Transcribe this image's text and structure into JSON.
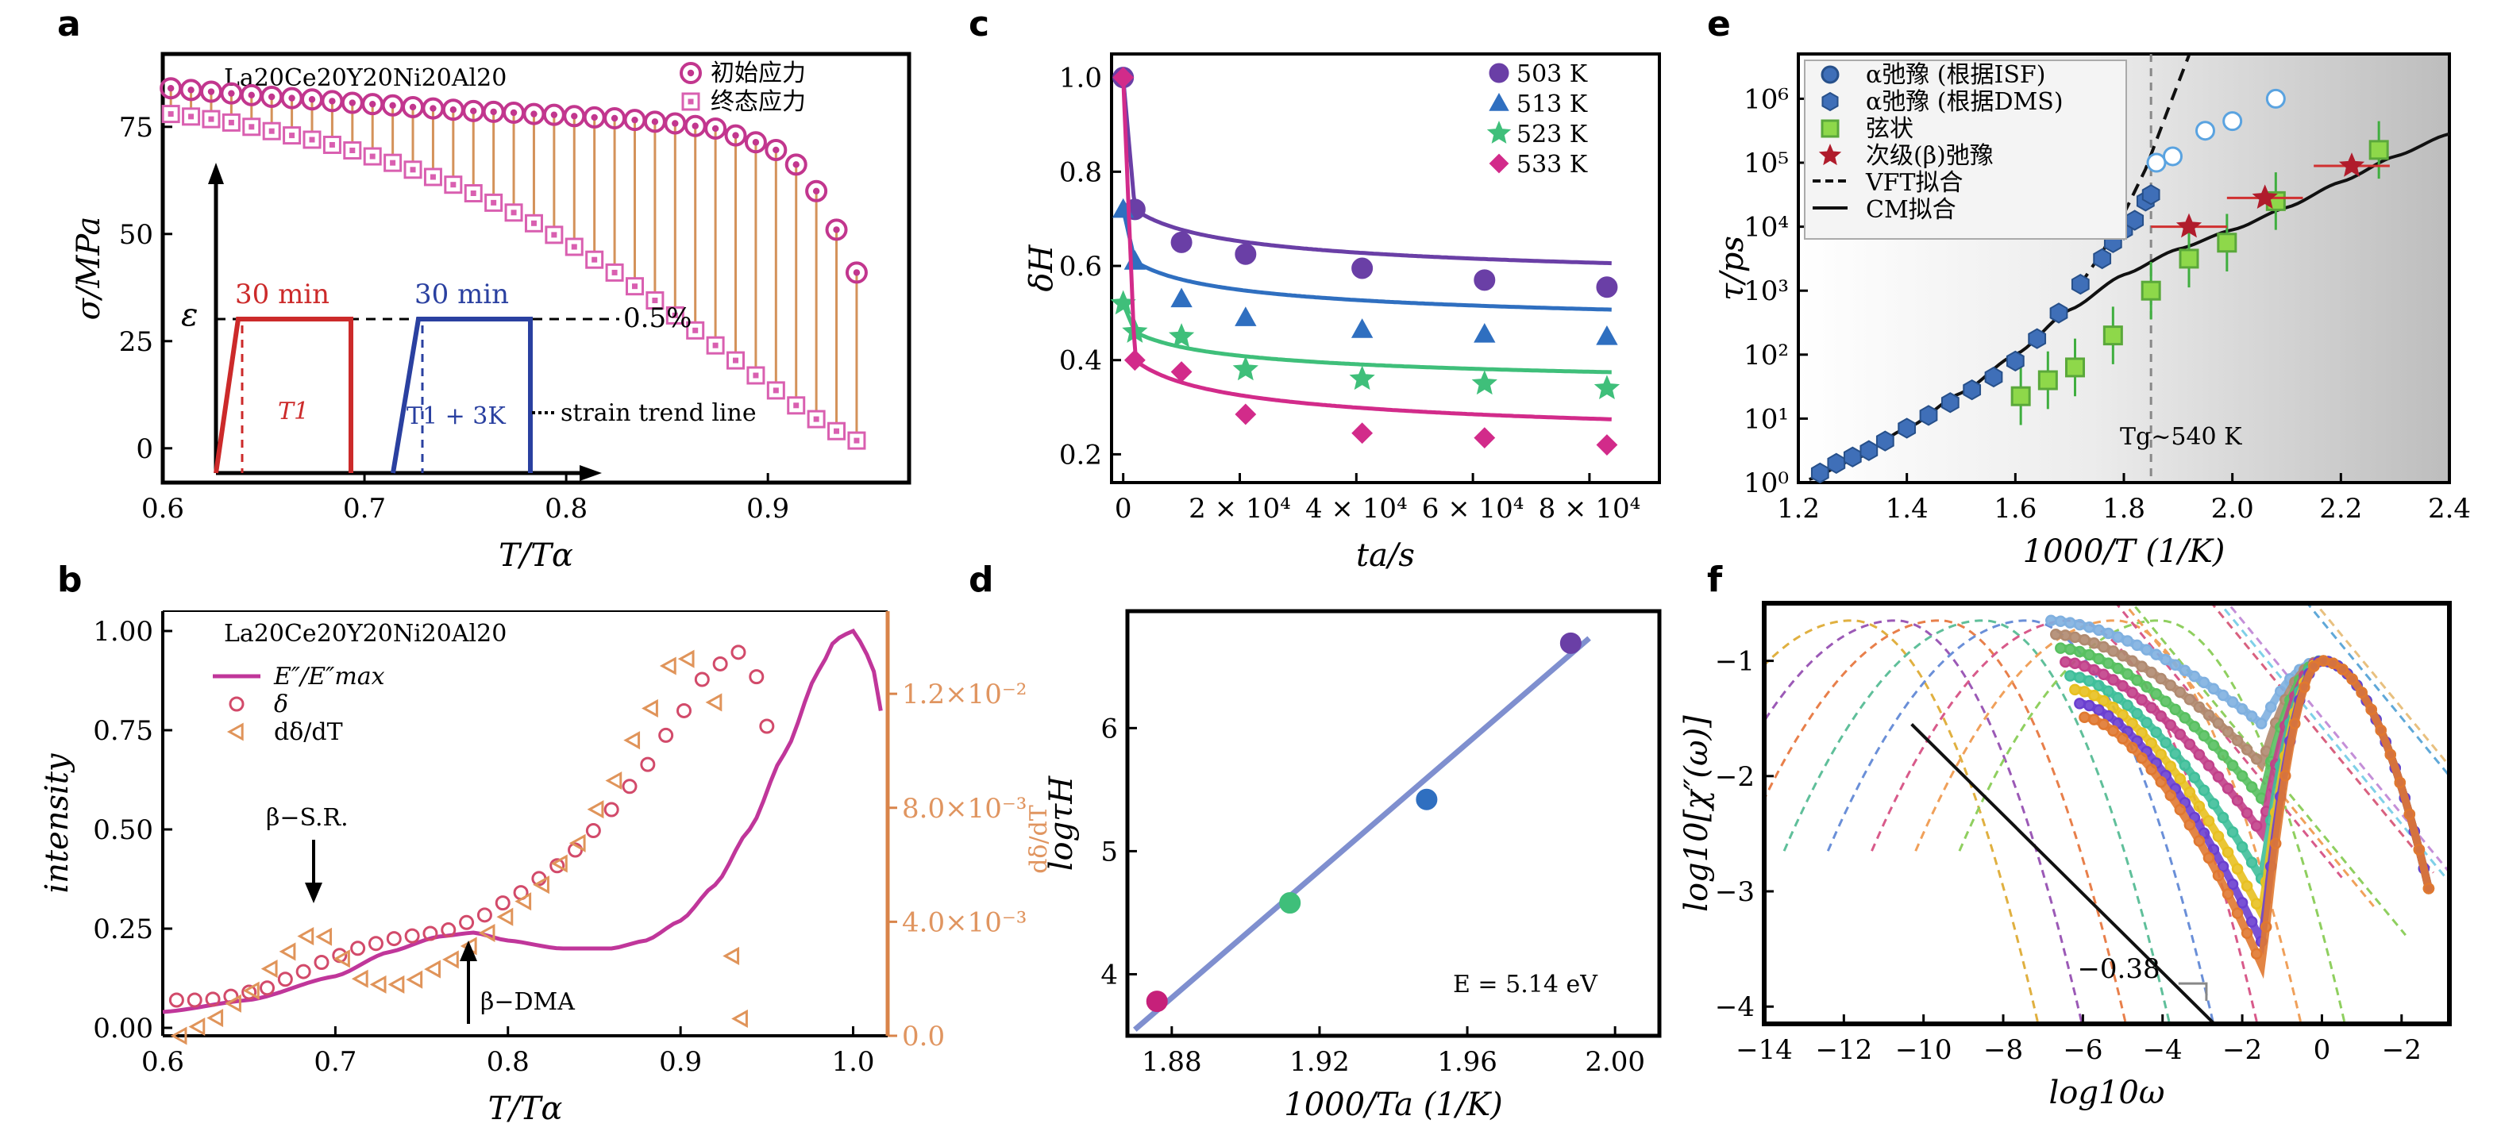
{
  "panels": {
    "a": {
      "letter": "a",
      "xlabel": "T/Tα",
      "ylabel": "σ/MPa",
      "sample": "La20Ce20Y20Ni20Al20",
      "xticks": [
        "0.6",
        "0.7",
        "0.8",
        "0.9"
      ],
      "yticks": [
        "0",
        "25",
        "50",
        "75"
      ],
      "xlim": [
        0.6,
        0.97
      ],
      "ylim": [
        -8,
        92
      ],
      "legend": [
        "初始应力",
        "终态应力"
      ],
      "inset": {
        "label1": "30 min",
        "label2": "30 min",
        "strain": "0.5%",
        "eps": "ε",
        "t1": "T1",
        "t2": "T1 + 3K",
        "trend": "strain trend line"
      },
      "colors": {
        "initial": "#c2368e",
        "final": "#d95fb0",
        "lines": "#d4925a",
        "red": "#cc2a2a",
        "blue": "#2a40a0"
      }
    },
    "b": {
      "letter": "b",
      "xlabel": "T/Tα",
      "ylabel": "intensity",
      "y2label": "dδ/dT",
      "sample": "La20Ce20Y20Ni20Al20",
      "xticks": [
        "0.6",
        "0.7",
        "0.8",
        "0.9",
        "1.0"
      ],
      "yticks": [
        "0.00",
        "0.25",
        "0.50",
        "0.75",
        "1.00"
      ],
      "y2ticks": [
        "0.0",
        "4.0×10⁻³",
        "8.0×10⁻³",
        "1.2×10⁻²"
      ],
      "xlim": [
        0.6,
        1.02
      ],
      "ylim": [
        -0.02,
        1.05
      ],
      "legend": [
        "E″/E″max",
        "δ",
        "dδ/dT"
      ],
      "annot": [
        "β−S.R.",
        "β−DMA"
      ]
    },
    "c": {
      "letter": "c",
      "xlabel": "ta/s",
      "ylabel": "δH",
      "xticks": [
        "0",
        "2 × 10⁴",
        "4 × 10⁴",
        "6 × 10⁴",
        "8 × 10⁴"
      ],
      "yticks": [
        "0.2",
        "0.4",
        "0.6",
        "0.8",
        "1.0"
      ],
      "xlim": [
        -2000,
        92000
      ],
      "ylim": [
        0.14,
        1.05
      ],
      "legend": [
        "503 K",
        "513 K",
        "523 K",
        "533 K"
      ]
    },
    "d": {
      "letter": "d",
      "xlabel": "1000/Ta (1/K)",
      "ylabel": "logτH",
      "xticks": [
        "1.88",
        "1.92",
        "1.96",
        "2.00"
      ],
      "yticks": [
        "4",
        "5",
        "6"
      ],
      "xlim": [
        1.868,
        2.012
      ],
      "ylim": [
        3.5,
        6.95
      ],
      "annot": "E = 5.14 eV"
    },
    "e": {
      "letter": "e",
      "xlabel": "1000/T (1/K)",
      "ylabel": "τ/ps",
      "xticks": [
        "1.2",
        "1.4",
        "1.6",
        "1.8",
        "2.0",
        "2.2",
        "2.4"
      ],
      "yticks": [
        "10⁰",
        "10¹",
        "10²",
        "10³",
        "10⁴",
        "10⁵",
        "10⁶"
      ],
      "xlim": [
        1.2,
        2.4
      ],
      "ylim": [
        0,
        6.7
      ],
      "legend": [
        "α弛豫 (根据ISF)",
        "α弛豫 (根据DMS)",
        "弦状",
        "次级(β)弛豫",
        "VFT拟合",
        "CM拟合"
      ],
      "annot": "Tg~540 K"
    },
    "f": {
      "letter": "f",
      "xlabel": "log10ω",
      "ylabel": "log10[χ″(ω)]",
      "xticks": [
        "−14",
        "−12",
        "−10",
        "−8",
        "−6",
        "−4",
        "−2",
        "0",
        "−2"
      ],
      "yticks": [
        "−4",
        "−3",
        "−2",
        "−1"
      ],
      "xlim": [
        -14,
        3.2
      ],
      "ylim": [
        -4.15,
        -0.5
      ],
      "annot": "−0.38"
    }
  },
  "chart_data": [
    {
      "panel": "a",
      "type": "scatter",
      "title": "La20Ce20Y20Ni20Al20",
      "xlabel": "T/Tα",
      "ylabel": "σ/MPa",
      "xlim": [
        0.6,
        0.97
      ],
      "ylim": [
        -8,
        92
      ],
      "series": [
        {
          "name": "初始应力",
          "x": [
            0.604,
            0.614,
            0.624,
            0.634,
            0.644,
            0.654,
            0.664,
            0.674,
            0.684,
            0.694,
            0.704,
            0.714,
            0.724,
            0.734,
            0.744,
            0.754,
            0.764,
            0.774,
            0.784,
            0.794,
            0.804,
            0.814,
            0.824,
            0.834,
            0.844,
            0.854,
            0.864,
            0.874,
            0.884,
            0.894,
            0.904,
            0.914,
            0.924,
            0.934,
            0.944
          ],
          "y": [
            84,
            83.6,
            83.2,
            82.8,
            82.4,
            82,
            81.7,
            81.4,
            81,
            80.6,
            80.3,
            80,
            79.6,
            79.3,
            79,
            78.7,
            78.5,
            78.3,
            78,
            77.8,
            77.5,
            77.2,
            77,
            76.6,
            76.2,
            75.8,
            75.2,
            74.6,
            73,
            71.4,
            69.6,
            66.2,
            60,
            51,
            41
          ]
        },
        {
          "name": "终态应力",
          "x": [
            0.604,
            0.614,
            0.624,
            0.634,
            0.644,
            0.654,
            0.664,
            0.674,
            0.684,
            0.694,
            0.704,
            0.714,
            0.724,
            0.734,
            0.744,
            0.754,
            0.764,
            0.774,
            0.784,
            0.794,
            0.804,
            0.814,
            0.824,
            0.834,
            0.844,
            0.854,
            0.864,
            0.874,
            0.884,
            0.894,
            0.904,
            0.914,
            0.924,
            0.934,
            0.944
          ],
          "y": [
            78,
            77.4,
            76.8,
            76,
            75,
            74,
            73,
            72,
            70.8,
            69.5,
            68.1,
            66.6,
            65,
            63.3,
            61.5,
            59.5,
            57.3,
            55,
            52.5,
            49.8,
            47,
            44,
            41,
            37.8,
            34.5,
            31,
            27.5,
            24,
            20.5,
            17,
            13.5,
            10,
            6.8,
            4,
            1.8
          ]
        }
      ]
    },
    {
      "panel": "b",
      "type": "line",
      "title": "La20Ce20Y20Ni20Al20",
      "xlabel": "T/Tα",
      "ylabel": "intensity",
      "y2label": "dδ/dT",
      "xlim": [
        0.6,
        1.02
      ],
      "ylim": [
        -0.02,
        1.05
      ],
      "y2lim": [
        0,
        0.0149
      ],
      "series": [
        {
          "name": "E″/E″max",
          "x": [
            0.6,
            0.65,
            0.7,
            0.73,
            0.76,
            0.78,
            0.8,
            0.83,
            0.86,
            0.88,
            0.9,
            0.92,
            0.94,
            0.96,
            0.98,
            0.99,
            1.0,
            1.01,
            1.02
          ],
          "y": [
            0.04,
            0.07,
            0.13,
            0.19,
            0.23,
            0.24,
            0.22,
            0.2,
            0.2,
            0.22,
            0.27,
            0.36,
            0.5,
            0.69,
            0.9,
            0.98,
            1.0,
            0.93,
            0.72
          ]
        },
        {
          "name": "δ",
          "x": [
            0.608,
            0.625,
            0.64,
            0.66,
            0.68,
            0.7,
            0.72,
            0.74,
            0.76,
            0.78,
            0.8,
            0.82,
            0.84,
            0.86,
            0.88,
            0.9,
            0.915,
            0.93,
            0.94,
            0.95
          ],
          "y": [
            0.07,
            0.07,
            0.08,
            0.1,
            0.14,
            0.18,
            0.21,
            0.23,
            0.24,
            0.27,
            0.32,
            0.38,
            0.45,
            0.55,
            0.66,
            0.79,
            0.89,
            0.94,
            0.96,
            0.76
          ]
        },
        {
          "name": "dδ/dT",
          "x": [
            0.61,
            0.63,
            0.65,
            0.67,
            0.68,
            0.69,
            0.7,
            0.71,
            0.72,
            0.74,
            0.76,
            0.78,
            0.8,
            0.82,
            0.84,
            0.86,
            0.88,
            0.895,
            0.91,
            0.92,
            0.93,
            0.935
          ],
          "y": [
            0.0,
            0.0006,
            0.0015,
            0.0028,
            0.0034,
            0.0037,
            0.0031,
            0.0022,
            0.0018,
            0.0018,
            0.0024,
            0.0032,
            0.0042,
            0.0053,
            0.0067,
            0.0088,
            0.0112,
            0.0131,
            0.0133,
            0.0117,
            0.0028,
            0.0006
          ]
        }
      ]
    },
    {
      "panel": "c",
      "type": "line",
      "xlabel": "ta/s",
      "ylabel": "δH",
      "xlim": [
        -2000,
        92000
      ],
      "ylim": [
        0.14,
        1.05
      ],
      "series": [
        {
          "name": "503 K",
          "x": [
            0,
            2000,
            10000,
            21000,
            41000,
            62000,
            83000
          ],
          "y": [
            1.0,
            0.72,
            0.65,
            0.625,
            0.595,
            0.57,
            0.555
          ]
        },
        {
          "name": "513 K",
          "x": [
            0,
            2000,
            10000,
            21000,
            41000,
            62000,
            83000
          ],
          "y": [
            0.72,
            0.61,
            0.53,
            0.49,
            0.465,
            0.455,
            0.45
          ]
        },
        {
          "name": "523 K",
          "x": [
            0,
            2000,
            10000,
            21000,
            41000,
            62000,
            83000
          ],
          "y": [
            0.52,
            0.46,
            0.45,
            0.38,
            0.36,
            0.35,
            0.34
          ]
        },
        {
          "name": "533 K",
          "x": [
            0,
            2000,
            10000,
            21000,
            41000,
            62000,
            83000
          ],
          "y": [
            1.0,
            0.4,
            0.375,
            0.285,
            0.245,
            0.235,
            0.22
          ]
        }
      ]
    },
    {
      "panel": "d",
      "type": "scatter",
      "xlabel": "1000/Ta (1/K)",
      "ylabel": "logτH",
      "xlim": [
        1.868,
        2.012
      ],
      "ylim": [
        3.5,
        6.95
      ],
      "series": [
        {
          "name": "",
          "x": [
            1.876,
            1.912,
            1.949,
            1.988
          ],
          "y": [
            3.78,
            4.58,
            5.42,
            6.69
          ]
        }
      ],
      "fit": {
        "x": [
          1.87,
          1.993
        ],
        "y": [
          3.55,
          6.73
        ]
      },
      "annotation": "E = 5.14 eV"
    },
    {
      "panel": "e",
      "type": "scatter",
      "xlabel": "1000/T (1/K)",
      "ylabel": "τ/ps",
      "xlim": [
        1.2,
        2.4
      ],
      "ylim_log10": [
        0,
        6.7
      ],
      "scale": "log",
      "series": [
        {
          "name": "α弛豫 (根据ISF)",
          "x": [
            1.86,
            1.89,
            1.95,
            2.0,
            2.08
          ],
          "log10y": [
            5.0,
            5.1,
            5.5,
            5.65,
            6.0
          ]
        },
        {
          "name": "α弛豫 (根据DMS)",
          "x": [
            1.24,
            1.27,
            1.3,
            1.33,
            1.36,
            1.4,
            1.44,
            1.48,
            1.52,
            1.56,
            1.6,
            1.64,
            1.68,
            1.72,
            1.76,
            1.78,
            1.8,
            1.82,
            1.84,
            1.85
          ],
          "log10y": [
            0.15,
            0.3,
            0.4,
            0.5,
            0.65,
            0.85,
            1.05,
            1.25,
            1.45,
            1.65,
            1.9,
            2.25,
            2.65,
            3.1,
            3.5,
            3.75,
            3.95,
            4.1,
            4.4,
            4.5
          ]
        },
        {
          "name": "弦状",
          "x": [
            1.61,
            1.66,
            1.71,
            1.78,
            1.85,
            1.92,
            1.99,
            2.08,
            2.27
          ],
          "log10y": [
            1.35,
            1.6,
            1.8,
            2.3,
            3.0,
            3.5,
            3.75,
            4.4,
            5.2
          ]
        },
        {
          "name": "次级(β)弛豫",
          "x": [
            1.92,
            2.06,
            2.22
          ],
          "log10y": [
            4.0,
            4.45,
            4.95
          ]
        }
      ],
      "fits": [
        {
          "name": "VFT拟合",
          "x": [
            1.72,
            1.76,
            1.8,
            1.84,
            1.88,
            1.92
          ],
          "log10y": [
            3.1,
            3.6,
            4.2,
            4.9,
            5.8,
            6.8
          ]
        },
        {
          "name": "CM拟合",
          "x": [
            1.22,
            1.3,
            1.4,
            1.5,
            1.6,
            1.7,
            1.8,
            1.9,
            2.0,
            2.1,
            2.2,
            2.3,
            2.4
          ],
          "log10y": [
            0.05,
            0.35,
            0.85,
            1.4,
            2.0,
            2.7,
            3.25,
            3.65,
            3.95,
            4.3,
            4.7,
            5.1,
            5.45
          ]
        }
      ],
      "annotation": "Tg~540 K"
    },
    {
      "panel": "f",
      "type": "line",
      "xlabel": "log10ω",
      "ylabel": "log10[χ″(ω)]",
      "xlim": [
        -14,
        3.2
      ],
      "ylim": [
        -4.15,
        -0.5
      ],
      "series": [
        {
          "name": "",
          "minimum": -1.55,
          "ratio": 0.85
        },
        {
          "name": "",
          "minimum": -1.9,
          "ratio": 0.87
        },
        {
          "name": "",
          "minimum": -2.2,
          "ratio": 0.89
        },
        {
          "name": "",
          "minimum": -2.5,
          "ratio": 0.91
        },
        {
          "name": "",
          "minimum": -2.9,
          "ratio": 0.93
        },
        {
          "name": "",
          "minimum": -3.2,
          "ratio": 0.95
        },
        {
          "name": "",
          "minimum": -3.45,
          "ratio": 0.97
        },
        {
          "name": "",
          "minimum": -3.65,
          "ratio": 0.99
        }
      ],
      "annotation": "−0.38"
    }
  ]
}
